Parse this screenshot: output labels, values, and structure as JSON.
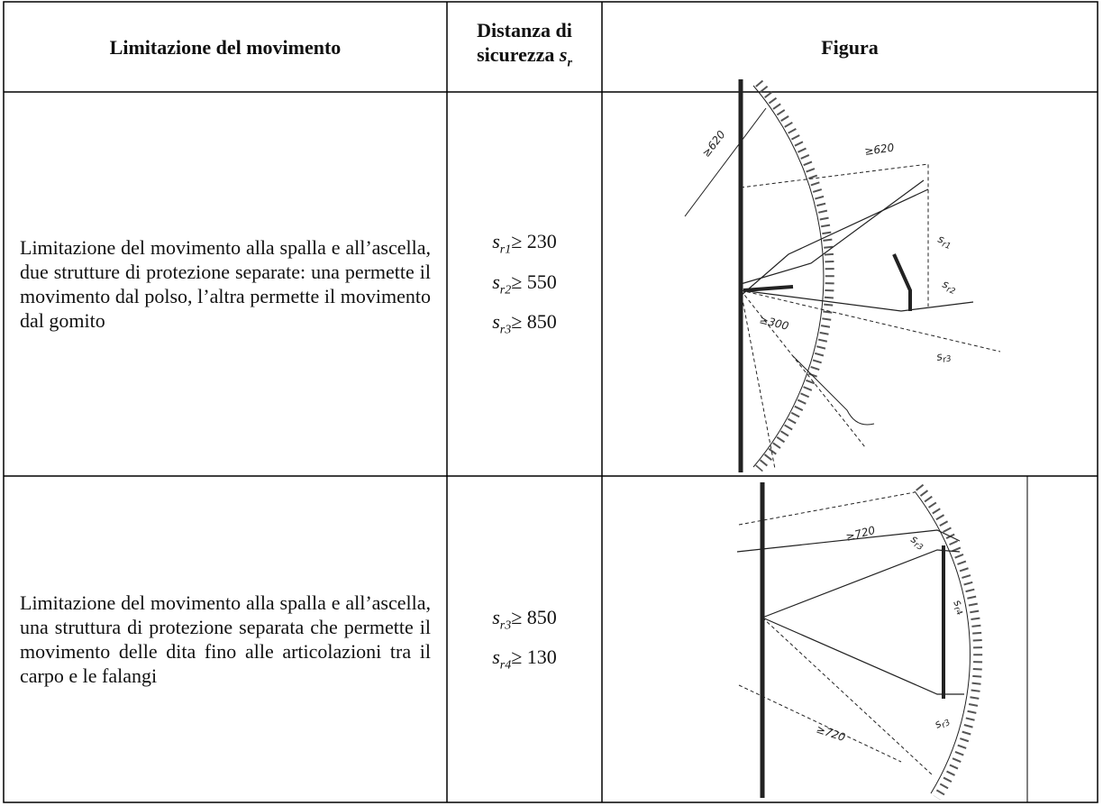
{
  "table": {
    "header": {
      "limitation": "Limitazione del movimento",
      "distance": "Distanza di sicurezza",
      "distance_symbol": "s",
      "distance_subscript": "r",
      "figure": "Figura"
    },
    "rows": [
      {
        "limitation": "Limitazione del movimento alla spalla e all’ascella, due strutture di protezione separate: una permette il movimento dal polso, l’altra permette il movimento dal gomito",
        "distances": [
          {
            "symbol": "s",
            "subscript": "r1",
            "bound": "≥ 230"
          },
          {
            "symbol": "s",
            "subscript": "r2",
            "bound": "≥ 550"
          },
          {
            "symbol": "s",
            "subscript": "r3",
            "bound": "≥ 850"
          }
        ],
        "figure_dimensions": [
          "≥620",
          "≥620",
          "≥300"
        ],
        "figure_symbols": [
          {
            "symbol": "s",
            "subscript": "r1"
          },
          {
            "symbol": "s",
            "subscript": "r2"
          },
          {
            "symbol": "s",
            "subscript": "r3"
          }
        ]
      },
      {
        "limitation": "Limitazione del movimento alla spalla e all’ascella, una struttura di protezione separata che permette il movimento delle dita fino alle articolazioni tra il carpo e le falangi",
        "distances": [
          {
            "symbol": "s",
            "subscript": "r3",
            "bound": "≥ 850"
          },
          {
            "symbol": "s",
            "subscript": "r4",
            "bound": "≥ 130"
          }
        ],
        "figure_dimensions": [
          "≥720",
          "≥720"
        ],
        "figure_symbols": [
          {
            "symbol": "s",
            "subscript": "r3"
          },
          {
            "symbol": "s",
            "subscript": "r4"
          },
          {
            "symbol": "s",
            "subscript": "r3"
          }
        ]
      }
    ]
  }
}
